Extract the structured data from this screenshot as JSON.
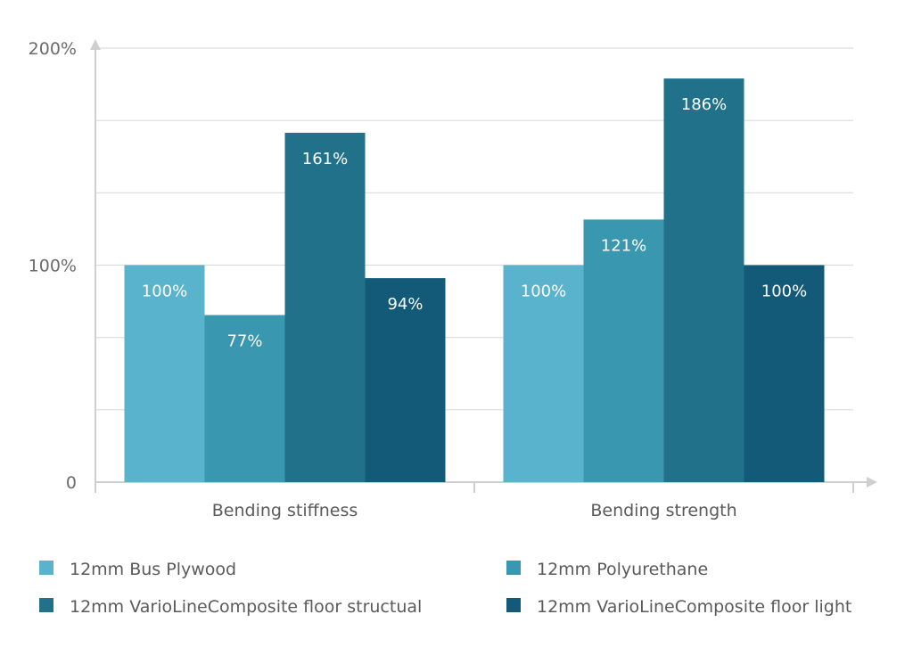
{
  "chart_data": {
    "type": "bar",
    "categories": [
      "Bending stiffness",
      "Bending strength"
    ],
    "series": [
      {
        "name": "12mm Bus Plywood",
        "color": "#5ab3cc",
        "values": [
          100,
          100
        ],
        "labels": [
          "100%",
          "100%"
        ]
      },
      {
        "name": "12mm Polyurethane",
        "color": "#3a97b0",
        "values": [
          77,
          121
        ],
        "labels": [
          "77%",
          "121%"
        ]
      },
      {
        "name": "12mm VarioLineComposite floor structual",
        "color": "#21718b",
        "values": [
          161,
          186
        ],
        "labels": [
          "161%",
          "186%"
        ]
      },
      {
        "name": "12mm VarioLineComposite floor light",
        "color": "#125a78",
        "values": [
          94,
          100
        ],
        "labels": [
          "94%",
          "100%"
        ]
      }
    ],
    "ylim": [
      0,
      200
    ],
    "yticks": [
      {
        "value": 0,
        "label": "0"
      },
      {
        "value": 100,
        "label": "100%"
      },
      {
        "value": 200,
        "label": "200%"
      }
    ],
    "grid": true,
    "legend": "bottom"
  }
}
